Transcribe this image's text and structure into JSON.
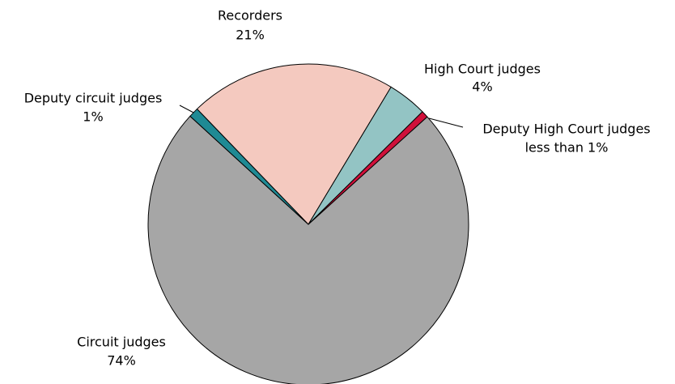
{
  "chart_data": {
    "type": "pie",
    "categories": [
      "Recorders",
      "High Court judges",
      "Deputy High Court judges",
      "Circuit judges",
      "Deputy circuit judges"
    ],
    "values": [
      21,
      4,
      0.7,
      74,
      1
    ],
    "value_labels": [
      "21%",
      "4%",
      "less than 1%",
      "74%",
      "1%"
    ],
    "colors": [
      "#f4c9bf",
      "#93c4c4",
      "#d0103a",
      "#a6a6a6",
      "#1f8a94"
    ]
  }
}
